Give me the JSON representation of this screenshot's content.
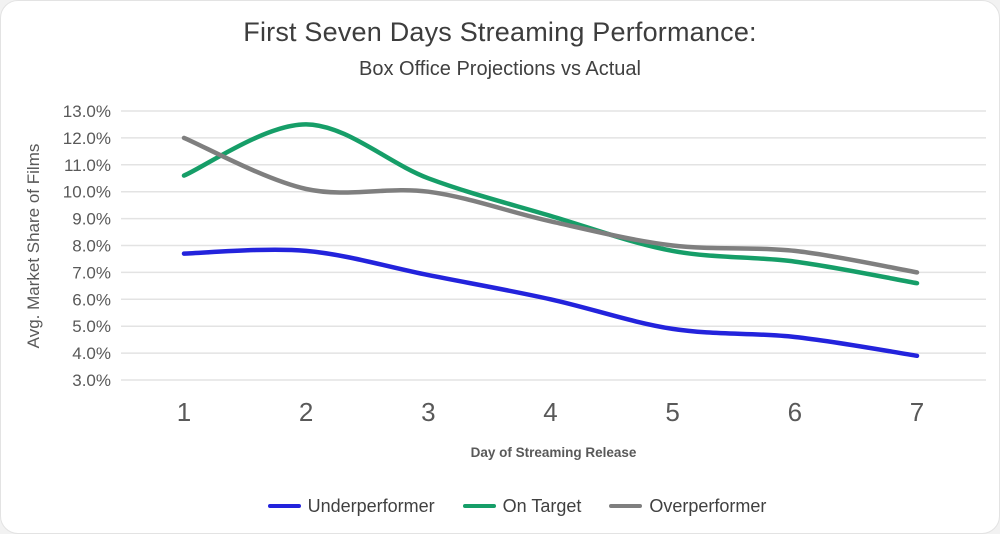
{
  "chart_data": {
    "type": "line",
    "title": "First Seven Days Streaming Performance:",
    "subtitle": "Box Office Projections vs Actual",
    "xlabel": "Day of Streaming Release",
    "ylabel": "Avg. Market Share of Films",
    "x": [
      1,
      2,
      3,
      4,
      5,
      6,
      7
    ],
    "ylim": [
      3,
      13
    ],
    "y_tick_step": 1,
    "y_tick_labels": [
      "13.0%",
      "12.0%",
      "11.0%",
      "10.0%",
      "9.0%",
      "8.0%",
      "7.0%",
      "6.0%",
      "5.0%",
      "4.0%",
      "3.0%"
    ],
    "grid": "horizontal",
    "legend_position": "bottom",
    "series": [
      {
        "name": "Underperformer",
        "color": "#2323dc",
        "values": [
          7.7,
          7.8,
          6.9,
          6.0,
          4.9,
          4.6,
          3.9
        ]
      },
      {
        "name": "On Target",
        "color": "#169e68",
        "values": [
          10.6,
          12.5,
          10.5,
          9.1,
          7.8,
          7.4,
          6.6
        ]
      },
      {
        "name": "Overperformer",
        "color": "#7f7f7f",
        "values": [
          12.0,
          10.1,
          10.0,
          8.9,
          8.0,
          7.8,
          7.0
        ]
      }
    ],
    "colors": {
      "gridline": "#e3e3e3",
      "tick_text": "#595959",
      "title_text": "#3d3d3d"
    }
  }
}
